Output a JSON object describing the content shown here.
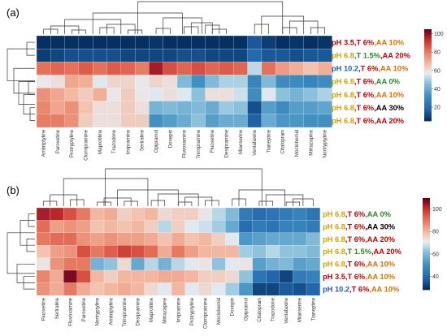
{
  "chart_data": [
    {
      "type": "heatmap",
      "panel_label": "(a)",
      "columns": [
        "Amitriptyline",
        "Paroxetine",
        "Protryptyline",
        "Clomipramine",
        "Maprotiline",
        "Trazodone",
        "Imipramine",
        "Sertraline",
        "Opipramol",
        "Doxepin",
        "Fluvoxamine",
        "Trimipramine",
        "Fluoxetine",
        "Desipramine",
        "Mianserine",
        "Venlafaxine",
        "Tianeptine",
        "Citalopram",
        "Moclobemid",
        "Mirtazapine",
        "Nortryptyline"
      ],
      "rows": [
        [
          {
            "text": "pH 3.5",
            "color": "#c00000"
          },
          {
            "text": ",T 6%",
            "color": "#c00000"
          },
          {
            "text": ",AA 10%",
            "color": "#e07000"
          }
        ],
        [
          {
            "text": "pH 6.8",
            "color": "#d4a000"
          },
          {
            "text": ",T 1.5%",
            "color": "#2a8a2a"
          },
          {
            "text": ",AA 20%",
            "color": "#c00000"
          }
        ],
        [
          {
            "text": "pH 10.2",
            "color": "#1f5fb0"
          },
          {
            "text": ",T 6%",
            "color": "#c00000"
          },
          {
            "text": ",AA 10%",
            "color": "#e07000"
          }
        ],
        [
          {
            "text": "pH 6.8",
            "color": "#d4a000"
          },
          {
            "text": ",T 6%",
            "color": "#c00000"
          },
          {
            "text": ",AA 0%",
            "color": "#2a8a2a"
          }
        ],
        [
          {
            "text": "pH 6.8",
            "color": "#d4a000"
          },
          {
            "text": ",T 6%",
            "color": "#c00000"
          },
          {
            "text": ",AA 10%",
            "color": "#e07000"
          }
        ],
        [
          {
            "text": "pH 6.8",
            "color": "#d4a000"
          },
          {
            "text": ",T 6%",
            "color": "#c00000"
          },
          {
            "text": ",AA 30%",
            "color": "#000000"
          }
        ],
        [
          {
            "text": "pH 6.8",
            "color": "#d4a000"
          },
          {
            "text": ",T 6%",
            "color": "#c00000"
          },
          {
            "text": ",AA 20%",
            "color": "#c00000"
          }
        ]
      ],
      "values": [
        [
          5,
          4,
          5,
          4,
          4,
          5,
          4,
          4,
          6,
          5,
          4,
          5,
          5,
          4,
          4,
          14,
          8,
          5,
          6,
          5,
          6
        ],
        [
          8,
          10,
          12,
          12,
          12,
          12,
          10,
          10,
          10,
          10,
          12,
          12,
          10,
          10,
          10,
          18,
          14,
          14,
          12,
          14,
          14
        ],
        [
          82,
          84,
          82,
          86,
          82,
          86,
          84,
          80,
          98,
          88,
          84,
          88,
          84,
          86,
          84,
          52,
          82,
          74,
          70,
          66,
          70
        ],
        [
          58,
          60,
          72,
          70,
          56,
          62,
          62,
          58,
          62,
          60,
          44,
          32,
          44,
          50,
          50,
          28,
          44,
          30,
          30,
          28,
          30
        ],
        [
          76,
          72,
          68,
          64,
          70,
          58,
          64,
          58,
          56,
          60,
          56,
          46,
          60,
          60,
          54,
          30,
          56,
          46,
          42,
          46,
          50
        ],
        [
          78,
          72,
          76,
          66,
          60,
          60,
          64,
          60,
          42,
          44,
          42,
          44,
          40,
          48,
          46,
          12,
          36,
          30,
          36,
          36,
          38
        ],
        [
          80,
          80,
          76,
          64,
          60,
          60,
          64,
          64,
          32,
          36,
          40,
          46,
          36,
          40,
          40,
          16,
          40,
          34,
          34,
          32,
          32
        ]
      ],
      "colorbar_ticks": [
        20,
        40,
        60,
        80,
        100
      ],
      "colorbar_range": [
        5,
        105
      ]
    },
    {
      "type": "heatmap",
      "panel_label": "(b)",
      "columns": [
        "Fluoxetine",
        "Sertraline",
        "Fluvoxamine",
        "Paroxetine",
        "Nortryptyline",
        "Amitriptyline",
        "Trimipramine",
        "Desipramine",
        "Maprotiline",
        "Mirtazapine",
        "Imipramine",
        "Protryptyline",
        "Clomipramine",
        "Moclobemid",
        "Doxepin",
        "Opipramol",
        "Citalopram",
        "Trazodone",
        "Venlafaxine",
        "Mianserine",
        "Tianeptine"
      ],
      "rows": [
        [
          {
            "text": "pH 6.8",
            "color": "#d4a000"
          },
          {
            "text": ",T 6%",
            "color": "#c00000"
          },
          {
            "text": ",AA 0%",
            "color": "#2a8a2a"
          }
        ],
        [
          {
            "text": "pH 6.8",
            "color": "#d4a000"
          },
          {
            "text": ",T 6%",
            "color": "#c00000"
          },
          {
            "text": ",AA 30%",
            "color": "#000000"
          }
        ],
        [
          {
            "text": "pH 6.8",
            "color": "#d4a000"
          },
          {
            "text": ",T 6%",
            "color": "#c00000"
          },
          {
            "text": ",AA 20%",
            "color": "#c00000"
          }
        ],
        [
          {
            "text": "pH 6.8",
            "color": "#d4a000"
          },
          {
            "text": ",T 1.5%",
            "color": "#2a8a2a"
          },
          {
            "text": ",AA 20%",
            "color": "#c00000"
          }
        ],
        [
          {
            "text": "pH 6.8",
            "color": "#d4a000"
          },
          {
            "text": ",T 6%",
            "color": "#c00000"
          },
          {
            "text": ",AA 10%",
            "color": "#e07000"
          }
        ],
        [
          {
            "text": "pH 3.5",
            "color": "#c00000"
          },
          {
            "text": ",T 6%",
            "color": "#c00000"
          },
          {
            "text": ",AA 10%",
            "color": "#e07000"
          }
        ],
        [
          {
            "text": "pH 10.2",
            "color": "#1f5fb0"
          },
          {
            "text": ",T 6%",
            "color": "#c00000"
          },
          {
            "text": ",AA 10%",
            "color": "#e07000"
          }
        ]
      ],
      "values": [
        [
          104,
          102,
          96,
          90,
          80,
          82,
          76,
          78,
          80,
          74,
          76,
          76,
          72,
          66,
          60,
          44,
          40,
          42,
          44,
          46,
          42
        ],
        [
          92,
          84,
          86,
          84,
          78,
          80,
          78,
          80,
          76,
          66,
          76,
          70,
          68,
          64,
          56,
          40,
          44,
          42,
          46,
          46,
          44
        ],
        [
          90,
          92,
          92,
          86,
          84,
          86,
          84,
          84,
          82,
          78,
          82,
          78,
          80,
          76,
          70,
          52,
          54,
          56,
          56,
          56,
          60
        ],
        [
          78,
          84,
          86,
          96,
          90,
          94,
          98,
          96,
          92,
          82,
          90,
          84,
          80,
          80,
          80,
          64,
          62,
          66,
          62,
          62,
          60
        ],
        [
          72,
          86,
          90,
          90,
          58,
          62,
          74,
          56,
          66,
          58,
          66,
          70,
          72,
          62,
          70,
          72,
          54,
          58,
          60,
          54,
          56
        ],
        [
          88,
          82,
          108,
          96,
          80,
          76,
          80,
          80,
          80,
          82,
          82,
          80,
          76,
          76,
          74,
          62,
          42,
          38,
          32,
          44,
          46
        ],
        [
          86,
          82,
          90,
          82,
          78,
          80,
          82,
          80,
          74,
          70,
          80,
          70,
          74,
          70,
          64,
          52,
          32,
          32,
          36,
          34,
          38
        ]
      ],
      "colorbar_ticks": [
        40,
        60,
        80,
        100
      ],
      "colorbar_range": [
        28,
        110
      ]
    }
  ]
}
